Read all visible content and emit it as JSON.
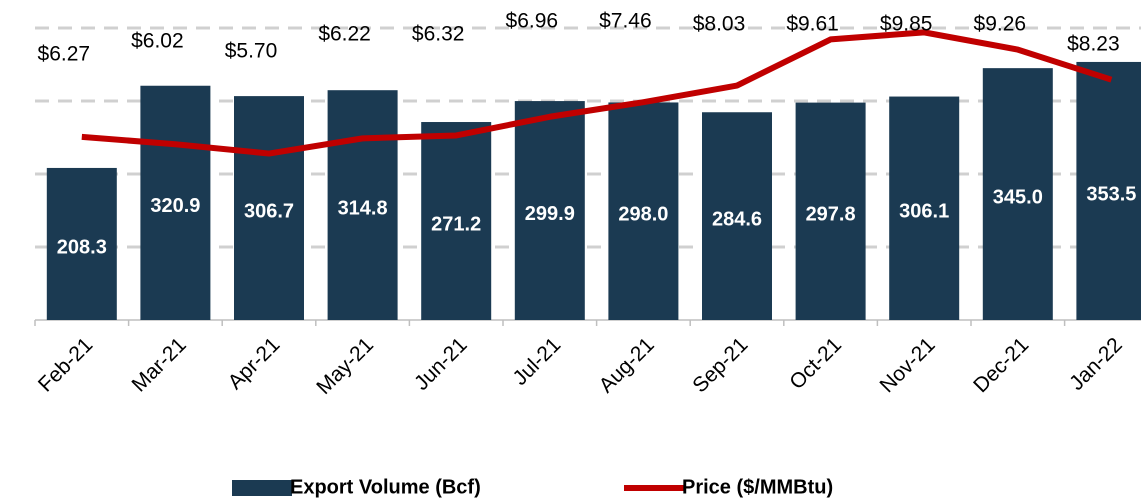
{
  "chart_data": {
    "type": "bar_line",
    "categories": [
      "Feb-21",
      "Mar-21",
      "Apr-21",
      "May-21",
      "Jun-21",
      "Jul-21",
      "Aug-21",
      "Sep-21",
      "Oct-21",
      "Nov-21",
      "Dec-21",
      "Jan-22"
    ],
    "series": [
      {
        "name": "Export Volume (Bcf)",
        "type": "bar",
        "color": "#1b3a52",
        "values": [
          208.3,
          320.9,
          306.7,
          314.8,
          271.2,
          299.9,
          298.0,
          284.6,
          297.8,
          306.1,
          345.0,
          353.5
        ],
        "value_labels": [
          "208.3",
          "320.9",
          "306.7",
          "314.8",
          "271.2",
          "299.9",
          "298.0",
          "284.6",
          "297.8",
          "306.1",
          "345.0",
          "353.5"
        ]
      },
      {
        "name": "Price ($/MMBtu)",
        "type": "line",
        "axis": "y2",
        "color": "#c00000",
        "values": [
          6.27,
          6.02,
          5.7,
          6.22,
          6.32,
          6.96,
          7.46,
          8.03,
          9.61,
          9.85,
          9.26,
          8.23
        ],
        "value_labels": [
          "$6.27",
          "$6.02",
          "$5.70",
          "$6.22",
          "$6.32",
          "$6.96",
          "$7.46",
          "$8.03",
          "$9.61",
          "$9.85",
          "$9.26",
          "$8.23"
        ]
      }
    ],
    "ylim": [
      0,
      400
    ],
    "yticks": [
      100,
      200,
      300,
      400
    ],
    "y2lim": [
      0,
      10
    ],
    "grid": true,
    "legend": "bottom"
  }
}
